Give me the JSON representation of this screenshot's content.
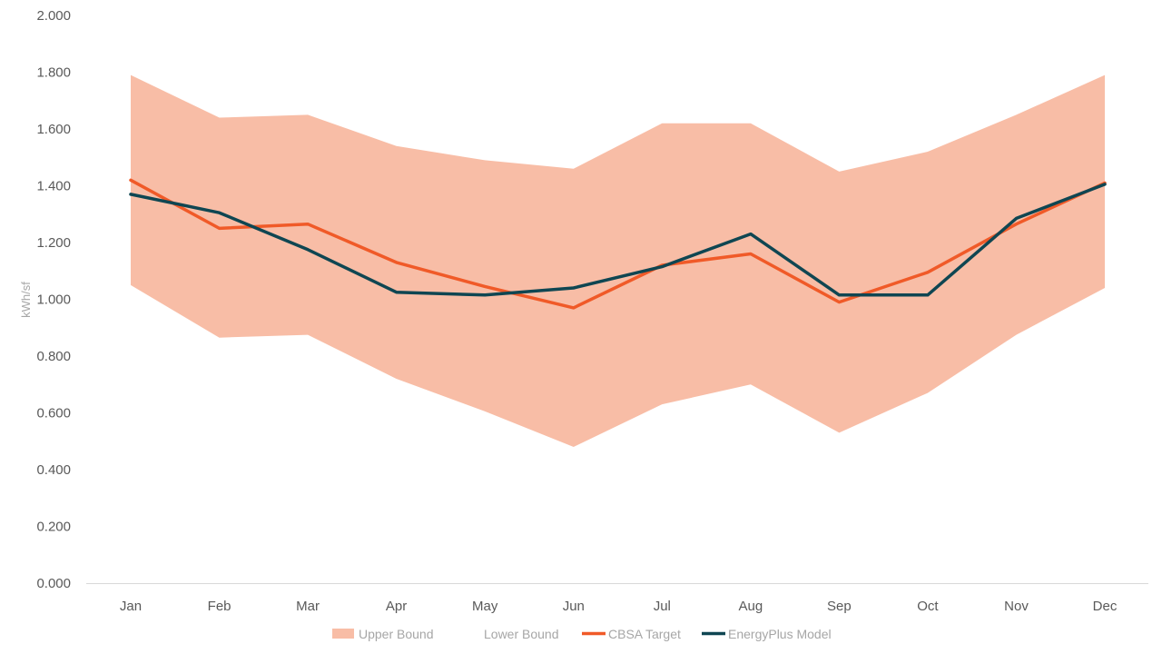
{
  "chart_data": {
    "type": "line",
    "title": "",
    "xlabel": "",
    "ylabel": "kWh/sf",
    "ylim": [
      0,
      2
    ],
    "ytick_step": 0.2,
    "ytick_labels": [
      "0.000",
      "0.200",
      "0.400",
      "0.600",
      "0.800",
      "1.000",
      "1.200",
      "1.400",
      "1.600",
      "1.800",
      "2.000"
    ],
    "categories": [
      "Jan",
      "Feb",
      "Mar",
      "Apr",
      "May",
      "Jun",
      "Jul",
      "Aug",
      "Sep",
      "Oct",
      "Nov",
      "Dec"
    ],
    "grid": false,
    "legend_position": "bottom",
    "band": {
      "upper_name": "Upper Bound",
      "lower_name": "Lower Bound",
      "upper": [
        1.79,
        1.64,
        1.65,
        1.54,
        1.49,
        1.46,
        1.62,
        1.62,
        1.45,
        1.52,
        1.65,
        1.79
      ],
      "lower": [
        1.05,
        0.865,
        0.875,
        0.72,
        0.605,
        0.48,
        0.63,
        0.7,
        0.53,
        0.67,
        0.875,
        1.04
      ],
      "color": "#f8bda6"
    },
    "series": [
      {
        "name": "CBSA Target",
        "color": "#f05a28",
        "values": [
          1.42,
          1.25,
          1.265,
          1.13,
          1.045,
          0.97,
          1.12,
          1.16,
          0.99,
          1.095,
          1.265,
          1.41
        ]
      },
      {
        "name": "EnergyPlus Model",
        "color": "#0f4652",
        "values": [
          1.37,
          1.305,
          1.175,
          1.025,
          1.015,
          1.04,
          1.115,
          1.23,
          1.015,
          1.015,
          1.285,
          1.405
        ]
      }
    ]
  }
}
